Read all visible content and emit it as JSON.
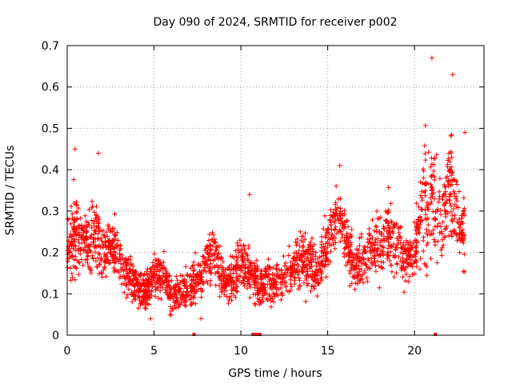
{
  "chart_data": {
    "type": "scatter",
    "title": "Day 090 of 2024, SRMTID for receiver p002",
    "xlabel": "GPS time / hours",
    "ylabel": "SRMTID / TECUs",
    "xlim": [
      0,
      24
    ],
    "ylim": [
      0,
      0.7
    ],
    "x_ticks": [
      0,
      5,
      10,
      15,
      20
    ],
    "x_tick_labels": [
      "0",
      "5",
      "10",
      "15",
      "20"
    ],
    "y_ticks": [
      0,
      0.1,
      0.2,
      0.3,
      0.4,
      0.5,
      0.6,
      0.7
    ],
    "y_tick_labels": [
      "0",
      "0.1",
      "0.2",
      "0.3",
      "0.4",
      "0.5",
      "0.6",
      "0.7"
    ],
    "grid": true,
    "marker": "+",
    "color": "#ff0000",
    "legend": "none",
    "trend_hours": [
      0,
      0.5,
      1,
      1.5,
      2,
      2.5,
      3,
      3.5,
      4,
      4.5,
      5,
      5.5,
      6,
      6.5,
      7,
      7.5,
      8,
      8.5,
      9,
      9.5,
      10,
      10.5,
      11,
      11.5,
      12,
      12.5,
      13,
      13.5,
      14,
      14.5,
      15,
      15.5,
      16,
      16.5,
      17,
      17.5,
      18,
      18.5,
      19,
      19.5,
      20,
      20.5,
      21,
      21.5,
      22,
      22.5,
      22.9
    ],
    "trend_srmtid": [
      0.21,
      0.24,
      0.22,
      0.25,
      0.2,
      0.22,
      0.19,
      0.15,
      0.12,
      0.1,
      0.14,
      0.15,
      0.09,
      0.1,
      0.11,
      0.13,
      0.17,
      0.19,
      0.14,
      0.12,
      0.18,
      0.15,
      0.12,
      0.13,
      0.12,
      0.14,
      0.16,
      0.18,
      0.17,
      0.15,
      0.22,
      0.3,
      0.25,
      0.16,
      0.18,
      0.2,
      0.22,
      0.25,
      0.22,
      0.18,
      0.2,
      0.3,
      0.35,
      0.25,
      0.38,
      0.28,
      0.25
    ],
    "trend_spread": [
      0.06,
      0.1,
      0.06,
      0.09,
      0.07,
      0.06,
      0.06,
      0.05,
      0.04,
      0.04,
      0.05,
      0.05,
      0.04,
      0.04,
      0.05,
      0.05,
      0.06,
      0.07,
      0.05,
      0.05,
      0.06,
      0.05,
      0.05,
      0.05,
      0.04,
      0.05,
      0.05,
      0.06,
      0.06,
      0.05,
      0.07,
      0.06,
      0.07,
      0.05,
      0.06,
      0.06,
      0.07,
      0.08,
      0.07,
      0.06,
      0.06,
      0.14,
      0.14,
      0.1,
      0.12,
      0.09,
      0.08
    ],
    "notable_points": [
      {
        "x": 0.45,
        "y": 0.45
      },
      {
        "x": 1.8,
        "y": 0.44
      },
      {
        "x": 21.0,
        "y": 0.67
      },
      {
        "x": 22.2,
        "y": 0.63
      },
      {
        "x": 15.7,
        "y": 0.41
      },
      {
        "x": 10.5,
        "y": 0.34
      },
      {
        "x": 4.8,
        "y": 0.04
      },
      {
        "x": 7.7,
        "y": 0.04
      },
      {
        "x": 22.9,
        "y": 0.49
      }
    ],
    "zero_markers_x": [
      7.3,
      10.7,
      10.9,
      11.1,
      21.2
    ],
    "point_count": 2400
  }
}
